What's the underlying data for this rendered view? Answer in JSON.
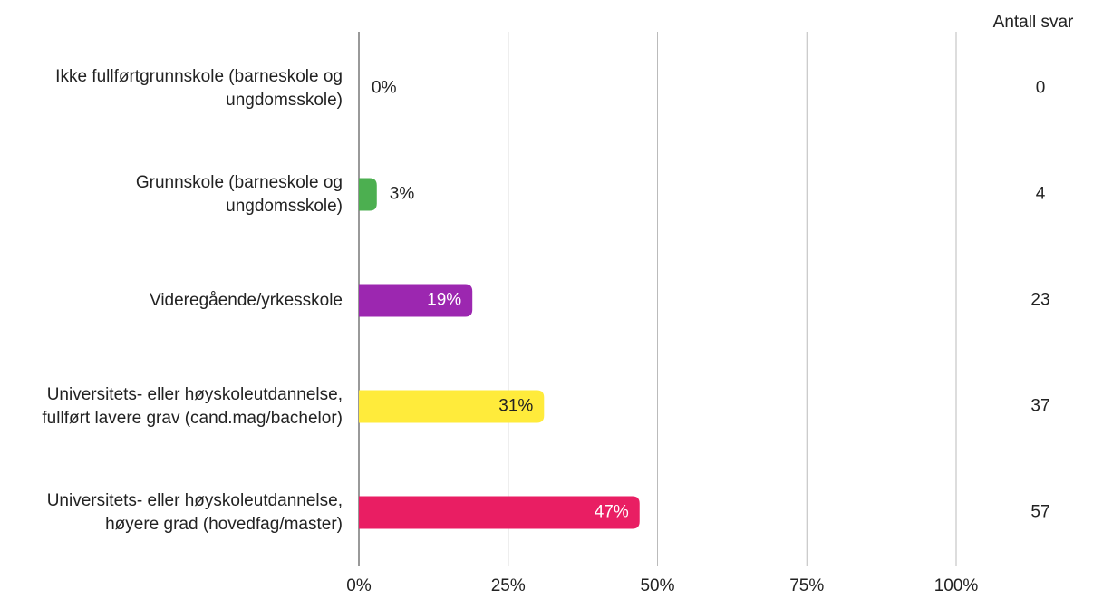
{
  "chart_data": {
    "type": "hbar",
    "categories": [
      "Ikke fullførtgrunnskole (barneskole og ungdomsskole)",
      "Grunnskole (barneskole og ungdomsskole)",
      "Videregående/yrkesskole",
      "Universitets- eller høyskoleutdannelse, fullført lavere grav (cand.mag/bachelor)",
      "Universitets- eller høyskoleutdannelse, høyere grad (hovedfag/master)"
    ],
    "values": [
      0,
      3,
      19,
      31,
      47
    ],
    "value_labels": [
      "0%",
      "3%",
      "19%",
      "31%",
      "47%"
    ],
    "colors": [
      "#4caf50",
      "#4caf50",
      "#9c27b0",
      "#ffeb3b",
      "#e91e63"
    ],
    "count_header": "Antall svar",
    "counts": [
      0,
      4,
      23,
      37,
      57
    ],
    "xlim": [
      0,
      100
    ],
    "xticks": [
      {
        "value": 0,
        "label": "0%"
      },
      {
        "value": 25,
        "label": "25%"
      },
      {
        "value": 50,
        "label": "50%"
      },
      {
        "value": 75,
        "label": "75%"
      },
      {
        "value": 100,
        "label": "100%"
      }
    ],
    "grid": true
  }
}
